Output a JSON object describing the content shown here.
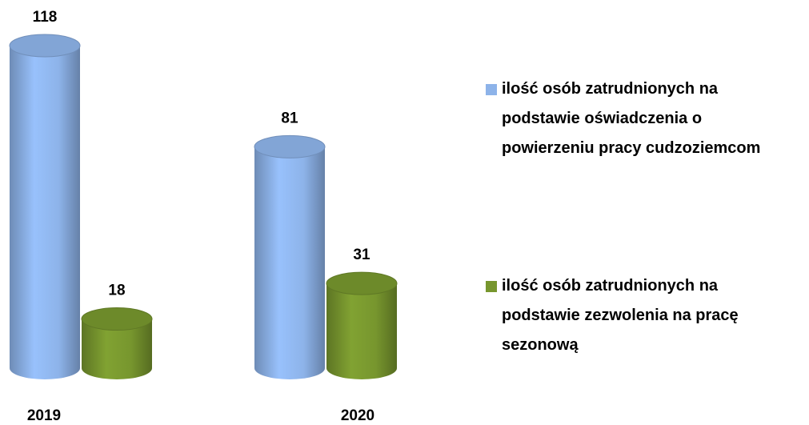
{
  "chart_data": {
    "type": "cylinder-bar",
    "categories": [
      "2019",
      "2020"
    ],
    "series": [
      {
        "name": "ilość osób zatrudnionych na podstawie oświadczenia o powierzeniu pracy cudzoziemcom",
        "color": "#8db3e9",
        "values": [
          118,
          81
        ]
      },
      {
        "name": "ilość osób zatrudnionych na podstawie zezwolenia na pracę sezonową",
        "color": "#77962e",
        "values": [
          18,
          31
        ]
      }
    ],
    "legend": "right"
  }
}
